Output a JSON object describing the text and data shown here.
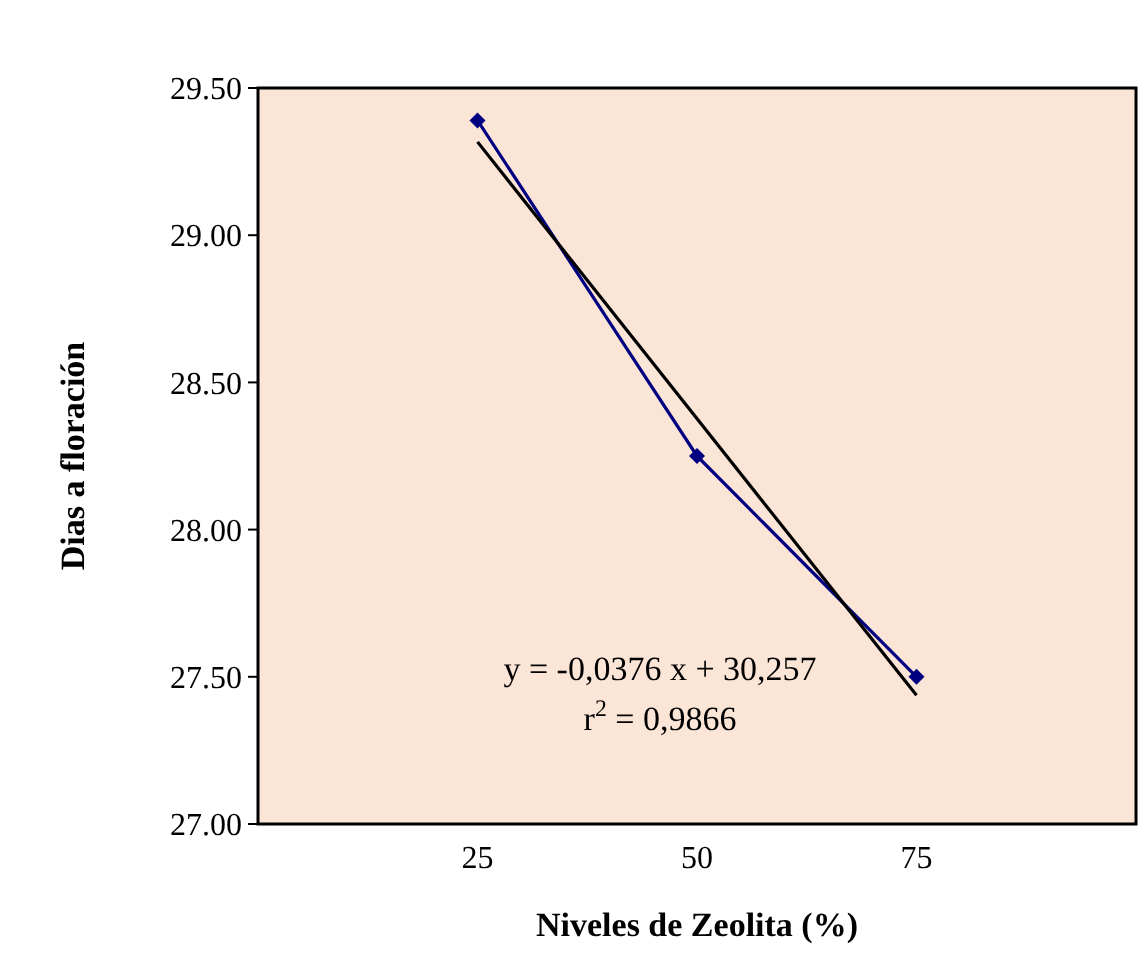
{
  "chart_data": {
    "type": "line",
    "xlabel": "Niveles de Zeolita (%)",
    "ylabel": "Dias a floración",
    "xlim": [
      0,
      100
    ],
    "xticks": [
      25,
      50,
      75
    ],
    "ylim": [
      27,
      29.5
    ],
    "yticks": [
      {
        "value": 27,
        "label": "27.00"
      },
      {
        "value": 27.5,
        "label": "27.50"
      },
      {
        "value": 28,
        "label": "28.00"
      },
      {
        "value": 28.5,
        "label": "28.50"
      },
      {
        "value": 29,
        "label": "29.00"
      },
      {
        "value": 29.5,
        "label": "29.50"
      }
    ],
    "series": [
      {
        "color": "#000080",
        "x": [
          25,
          50,
          75
        ],
        "values": [
          29.39,
          28.25,
          27.5
        ],
        "marker": "diamond"
      },
      {
        "color": "#000000",
        "x": [
          25,
          75
        ],
        "values": [
          29.317,
          27.437
        ],
        "marker": "none"
      }
    ],
    "annotations": [
      "y = -0,0376 x + 30,257",
      "r$^{2}$ = 0,9866"
    ],
    "grid": false,
    "line_style": "solid"
  }
}
